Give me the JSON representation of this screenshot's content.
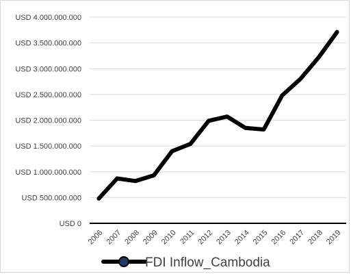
{
  "chart_data": {
    "type": "line",
    "categories": [
      "2006",
      "2007",
      "2008",
      "2009",
      "2010",
      "2011",
      "2012",
      "2013",
      "2014",
      "2015",
      "2016",
      "2017",
      "2018",
      "2019"
    ],
    "series": [
      {
        "name": "FDI Inflow_Cambodia",
        "values": [
          480000000,
          870000000,
          820000000,
          930000000,
          1400000000,
          1540000000,
          1990000000,
          2070000000,
          1850000000,
          1820000000,
          2480000000,
          2800000000,
          3220000000,
          3710000000
        ]
      }
    ],
    "ylim": [
      0,
      4000000000
    ],
    "yticks": [
      0,
      500000000,
      1000000000,
      1500000000,
      2000000000,
      2500000000,
      3000000000,
      3500000000,
      4000000000
    ],
    "ytick_labels": [
      "USD 0",
      "USD 500.000.000",
      "USD 1.000.000.000",
      "USD 1.500.000.000",
      "USD 2.000.000.000",
      "USD 2.500.000.000",
      "USD 3.000.000.000",
      "USD 3.500.000.000",
      "USD 4.000.000.000"
    ],
    "grid": true,
    "legend_position": "bottom",
    "colors": {
      "line": "#000000",
      "grid": "#d9d9d9",
      "axis": "#000000",
      "text": "#404040",
      "marker_fill": "#1f3864"
    }
  }
}
